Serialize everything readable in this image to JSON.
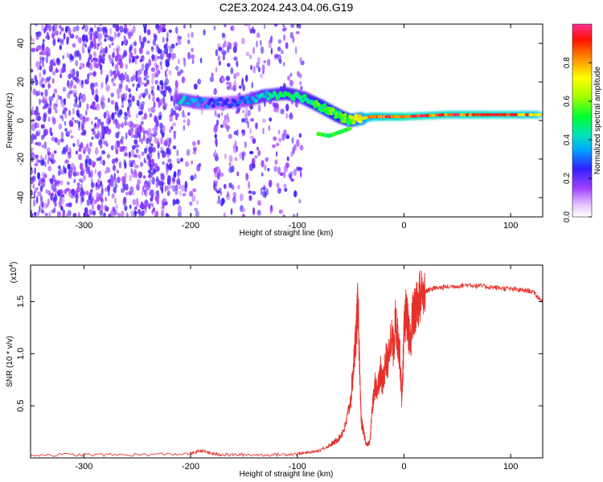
{
  "figure_title": "C2E3.2024.243.04.06.G19",
  "colorbar": {
    "label": "Normalized spectral amplitude",
    "ticks": [
      "0.0",
      "0.2",
      "0.4",
      "0.6",
      "0.8"
    ],
    "range": [
      0,
      1
    ]
  },
  "chart_data": [
    {
      "type": "heatmap",
      "title": "",
      "xlabel": "Height of straight line (km)",
      "ylabel": "Frequency (Hz)",
      "xlim": [
        -350,
        130
      ],
      "ylim": [
        -50,
        50
      ],
      "xticks": [
        -300,
        -200,
        -100,
        0,
        100
      ],
      "xtick_labels": [
        "-300",
        "-200",
        "-100",
        "0",
        "100"
      ],
      "yticks": [
        -40,
        -20,
        0,
        20,
        40
      ],
      "ytick_labels": [
        "-40",
        "-20",
        "0",
        "20",
        "40"
      ],
      "description_points": {
        "noise_region_x": [
          -350,
          -95
        ],
        "ridge": {
          "x": [
            -210,
            -190,
            -170,
            -150,
            -130,
            -110,
            -95,
            -80,
            -70,
            -60,
            -50,
            -40,
            -30,
            -20,
            0,
            40,
            80,
            130
          ],
          "y": [
            11,
            9,
            9,
            10,
            13,
            14,
            12,
            8,
            5,
            2,
            0,
            1,
            2,
            2,
            2,
            3,
            3,
            3
          ],
          "amplitude": [
            0.4,
            0.35,
            0.25,
            0.3,
            0.45,
            0.5,
            0.45,
            0.55,
            0.6,
            0.55,
            0.6,
            0.75,
            0.85,
            0.9,
            0.95,
            0.9,
            0.92,
            0.85
          ]
        },
        "lower_branch": {
          "x": [
            -80,
            -70,
            -60,
            -50
          ],
          "y": [
            -7,
            -8,
            -6,
            -4
          ]
        }
      }
    },
    {
      "type": "line",
      "title": "",
      "xlabel": "Height of straight line (km)",
      "ylabel": "SNR (10 * v/v)",
      "y_multiplier": "(x10",
      "y_multiplier_exp": "4",
      "y_multiplier_close": ")",
      "xlim": [
        -350,
        130
      ],
      "ylim": [
        0,
        1.85
      ],
      "xticks": [
        -300,
        -200,
        -100,
        0,
        100
      ],
      "xtick_labels": [
        "-300",
        "-200",
        "-100",
        "0",
        "100"
      ],
      "yticks": [
        0.5,
        1.0,
        1.5
      ],
      "ytick_labels": [
        "0.5",
        "1.0",
        "1.5"
      ],
      "color": "#e8302a",
      "series": [
        {
          "x": [
            -350,
            -300,
            -250,
            -200,
            -190,
            -180,
            -170,
            -150,
            -120,
            -100,
            -90,
            -80,
            -70,
            -65,
            -60,
            -55,
            -50,
            -47,
            -45,
            -43,
            -41,
            -40,
            -38,
            -35,
            -32,
            -30,
            -27,
            -25,
            -22,
            -20,
            -17,
            -15,
            -12,
            -10,
            -8,
            -6,
            -4,
            -2,
            0,
            2,
            4,
            6,
            8,
            10,
            12,
            15,
            20,
            25,
            30,
            40,
            50,
            60,
            70,
            80,
            90,
            100,
            110,
            120,
            130
          ],
          "y": [
            0.03,
            0.03,
            0.03,
            0.04,
            0.07,
            0.04,
            0.03,
            0.03,
            0.03,
            0.04,
            0.05,
            0.07,
            0.12,
            0.15,
            0.2,
            0.3,
            0.55,
            0.9,
            1.2,
            1.5,
            0.6,
            0.35,
            0.25,
            0.12,
            0.15,
            0.45,
            0.7,
            0.65,
            0.85,
            0.7,
            0.95,
            0.9,
            1.2,
            1.05,
            1.3,
            1.15,
            1.0,
            0.55,
            1.2,
            1.4,
            1.25,
            1.1,
            1.35,
            1.4,
            1.45,
            1.55,
            1.6,
            1.62,
            1.63,
            1.64,
            1.65,
            1.66,
            1.65,
            1.64,
            1.63,
            1.62,
            1.61,
            1.6,
            1.5
          ]
        }
      ]
    }
  ]
}
